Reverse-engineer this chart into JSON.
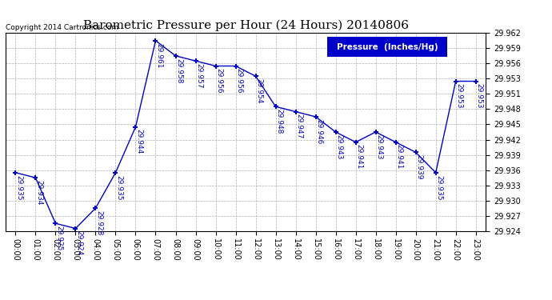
{
  "title": "Barometric Pressure per Hour (24 Hours) 20140806",
  "copyright": "Copyright 2014 Cartronics.com",
  "legend_label": "Pressure  (Inches/Hg)",
  "hours": [
    0,
    1,
    2,
    3,
    4,
    5,
    6,
    7,
    8,
    9,
    10,
    11,
    12,
    13,
    14,
    15,
    16,
    17,
    18,
    19,
    20,
    21,
    22,
    23
  ],
  "x_labels": [
    "00:00",
    "01:00",
    "02:00",
    "03:00",
    "04:00",
    "05:00",
    "06:00",
    "07:00",
    "08:00",
    "09:00",
    "10:00",
    "11:00",
    "12:00",
    "13:00",
    "14:00",
    "15:00",
    "16:00",
    "17:00",
    "18:00",
    "19:00",
    "20:00",
    "21:00",
    "22:00",
    "23:00"
  ],
  "values": [
    29.935,
    29.934,
    29.925,
    29.924,
    29.928,
    29.935,
    29.944,
    29.961,
    29.958,
    29.957,
    29.956,
    29.956,
    29.954,
    29.948,
    29.947,
    29.946,
    29.943,
    29.941,
    29.943,
    29.941,
    29.939,
    29.935,
    29.953,
    29.953
  ],
  "ylim_min": 29.9235,
  "ylim_max": 29.9625,
  "line_color": "#0000cc",
  "marker_color": "#0000cc",
  "bg_color": "#ffffff",
  "grid_color": "#b0b0b0",
  "title_fontsize": 11,
  "label_fontsize": 6.5,
  "tick_fontsize": 7,
  "copyright_fontsize": 6.5,
  "legend_fontsize": 7.5
}
